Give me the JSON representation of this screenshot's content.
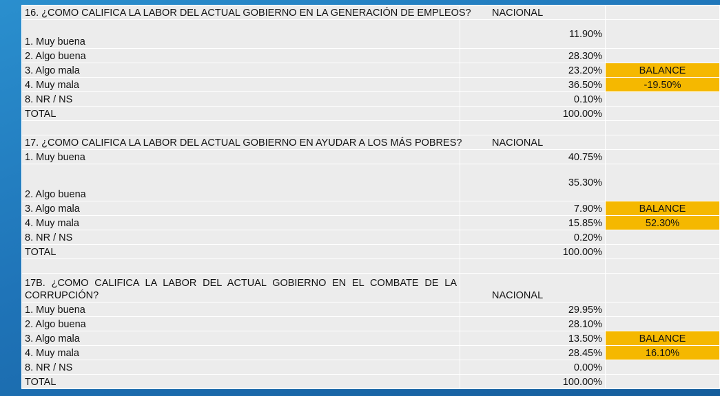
{
  "sections": [
    {
      "question": "16. ¿COMO CALIFICA LA LABOR DEL ACTUAL GOBIERNO EN LA GENERACIÓN DE EMPLEOS?",
      "column_header": "NACIONAL",
      "rows": [
        {
          "label": "1. Muy buena",
          "value": "11.90%",
          "extra": ""
        },
        {
          "label": "2. Algo buena",
          "value": "28.30%",
          "extra": ""
        },
        {
          "label": "3. Algo mala",
          "value": "23.20%",
          "extra": "BALANCE"
        },
        {
          "label": "4. Muy mala",
          "value": "36.50%",
          "extra": "-19.50%"
        },
        {
          "label": "8. NR / NS",
          "value": "0.10%",
          "extra": ""
        },
        {
          "label": "TOTAL",
          "value": "100.00%",
          "extra": ""
        }
      ]
    },
    {
      "question": "17. ¿COMO CALIFICA LA LABOR DEL ACTUAL GOBIERNO EN AYUDAR A LOS MÁS POBRES?",
      "column_header": "NACIONAL",
      "rows": [
        {
          "label": "1. Muy buena",
          "value": "40.75%",
          "extra": ""
        },
        {
          "label": "2. Algo buena",
          "value": "35.30%",
          "extra": ""
        },
        {
          "label": "3. Algo mala",
          "value": "7.90%",
          "extra": "BALANCE"
        },
        {
          "label": "4. Muy mala",
          "value": "15.85%",
          "extra": "52.30%"
        },
        {
          "label": "8. NR / NS",
          "value": "0.20%",
          "extra": ""
        },
        {
          "label": "TOTAL",
          "value": "100.00%",
          "extra": ""
        }
      ]
    },
    {
      "question": "17B. ¿COMO CALIFICA LA LABOR DEL ACTUAL GOBIERNO EN EL COMBATE DE LA CORRUPCIÓN?",
      "column_header": "NACIONAL",
      "rows": [
        {
          "label": "1. Muy buena",
          "value": "29.95%",
          "extra": ""
        },
        {
          "label": "2. Algo buena",
          "value": "28.10%",
          "extra": ""
        },
        {
          "label": "3. Algo mala",
          "value": "13.50%",
          "extra": "BALANCE"
        },
        {
          "label": "4. Muy mala",
          "value": "28.45%",
          "extra": "16.10%"
        },
        {
          "label": "8. NR / NS",
          "value": "0.00%",
          "extra": ""
        },
        {
          "label": "TOTAL",
          "value": "100.00%",
          "extra": ""
        }
      ]
    }
  ],
  "colors": {
    "cell_background": "#ececec",
    "balance_highlight": "#f5b800",
    "slide_background": "#1f74b8"
  }
}
